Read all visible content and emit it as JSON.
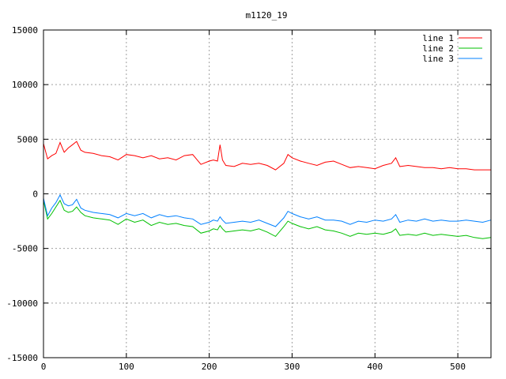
{
  "chart_data": {
    "type": "line",
    "title": "m1120_19",
    "xlabel": "",
    "ylabel": "",
    "xlim": [
      0,
      540
    ],
    "ylim": [
      -15000,
      15000
    ],
    "x_ticks": [
      0,
      100,
      200,
      300,
      400,
      500
    ],
    "y_ticks": [
      -15000,
      -10000,
      -5000,
      0,
      5000,
      10000,
      15000
    ],
    "grid": true,
    "legend_position": "top-right",
    "x": [
      0,
      5,
      10,
      15,
      20,
      25,
      30,
      35,
      40,
      45,
      50,
      60,
      70,
      80,
      90,
      100,
      110,
      120,
      130,
      140,
      150,
      160,
      170,
      180,
      190,
      200,
      205,
      210,
      213,
      216,
      220,
      230,
      240,
      250,
      260,
      270,
      280,
      290,
      295,
      300,
      310,
      320,
      330,
      340,
      350,
      360,
      370,
      380,
      390,
      400,
      410,
      420,
      425,
      430,
      440,
      450,
      460,
      470,
      480,
      490,
      500,
      510,
      520,
      530,
      540
    ],
    "series": [
      {
        "name": "line 1",
        "color": "#ff0000",
        "values": [
          4600,
          3200,
          3500,
          3700,
          4700,
          3800,
          4200,
          4500,
          4800,
          4000,
          3800,
          3700,
          3500,
          3400,
          3100,
          3600,
          3500,
          3300,
          3500,
          3200,
          3300,
          3100,
          3500,
          3600,
          2700,
          3000,
          3100,
          3000,
          4500,
          3100,
          2600,
          2500,
          2800,
          2700,
          2800,
          2600,
          2200,
          2800,
          3600,
          3300,
          3000,
          2800,
          2600,
          2900,
          3000,
          2700,
          2400,
          2500,
          2400,
          2300,
          2600,
          2800,
          3300,
          2500,
          2600,
          2500,
          2400,
          2400,
          2300,
          2400,
          2300,
          2300,
          2200,
          2200,
          2200
        ]
      },
      {
        "name": "line 2",
        "color": "#00c000",
        "values": [
          -600,
          -2300,
          -1800,
          -1200,
          -600,
          -1500,
          -1700,
          -1600,
          -1200,
          -1700,
          -2000,
          -2200,
          -2300,
          -2400,
          -2800,
          -2300,
          -2600,
          -2400,
          -2900,
          -2600,
          -2800,
          -2700,
          -2900,
          -3000,
          -3600,
          -3400,
          -3200,
          -3300,
          -2900,
          -3200,
          -3500,
          -3400,
          -3300,
          -3400,
          -3200,
          -3500,
          -3900,
          -3000,
          -2500,
          -2700,
          -3000,
          -3200,
          -3000,
          -3300,
          -3400,
          -3600,
          -3900,
          -3600,
          -3700,
          -3600,
          -3700,
          -3500,
          -3200,
          -3800,
          -3700,
          -3800,
          -3600,
          -3800,
          -3700,
          -3800,
          -3900,
          -3800,
          -4000,
          -4100,
          -4000
        ]
      },
      {
        "name": "line 3",
        "color": "#0080ff",
        "values": [
          -400,
          -2000,
          -1300,
          -800,
          -100,
          -900,
          -1100,
          -1000,
          -500,
          -1300,
          -1500,
          -1700,
          -1800,
          -1900,
          -2200,
          -1800,
          -2000,
          -1800,
          -2200,
          -1900,
          -2100,
          -2000,
          -2200,
          -2300,
          -2800,
          -2600,
          -2400,
          -2500,
          -2100,
          -2400,
          -2700,
          -2600,
          -2500,
          -2600,
          -2400,
          -2700,
          -3000,
          -2200,
          -1600,
          -1800,
          -2100,
          -2300,
          -2100,
          -2400,
          -2400,
          -2500,
          -2800,
          -2500,
          -2600,
          -2400,
          -2500,
          -2300,
          -1900,
          -2600,
          -2400,
          -2500,
          -2300,
          -2500,
          -2400,
          -2500,
          -2500,
          -2400,
          -2500,
          -2600,
          -2400
        ]
      }
    ]
  }
}
